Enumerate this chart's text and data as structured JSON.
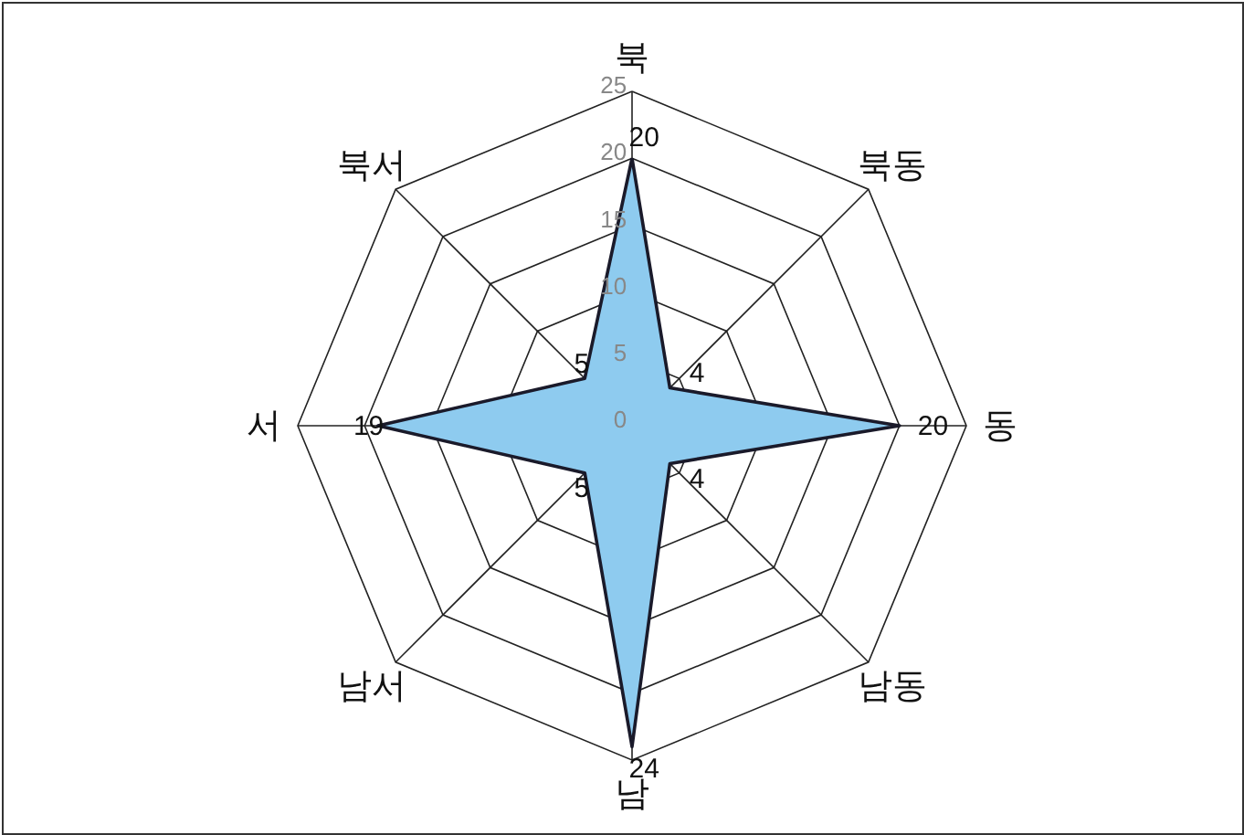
{
  "chart_data": {
    "type": "radar",
    "categories": [
      "북",
      "북동",
      "동",
      "남동",
      "남",
      "남서",
      "서",
      "북서"
    ],
    "series": [
      {
        "color": "#8ecbef",
        "values": [
          20,
          4,
          20,
          4,
          24,
          5,
          19,
          5
        ]
      }
    ],
    "ylim": [
      0,
      25
    ],
    "yticks": [
      0,
      5,
      10,
      15,
      20,
      25
    ],
    "data_labels": true,
    "grid": true
  }
}
